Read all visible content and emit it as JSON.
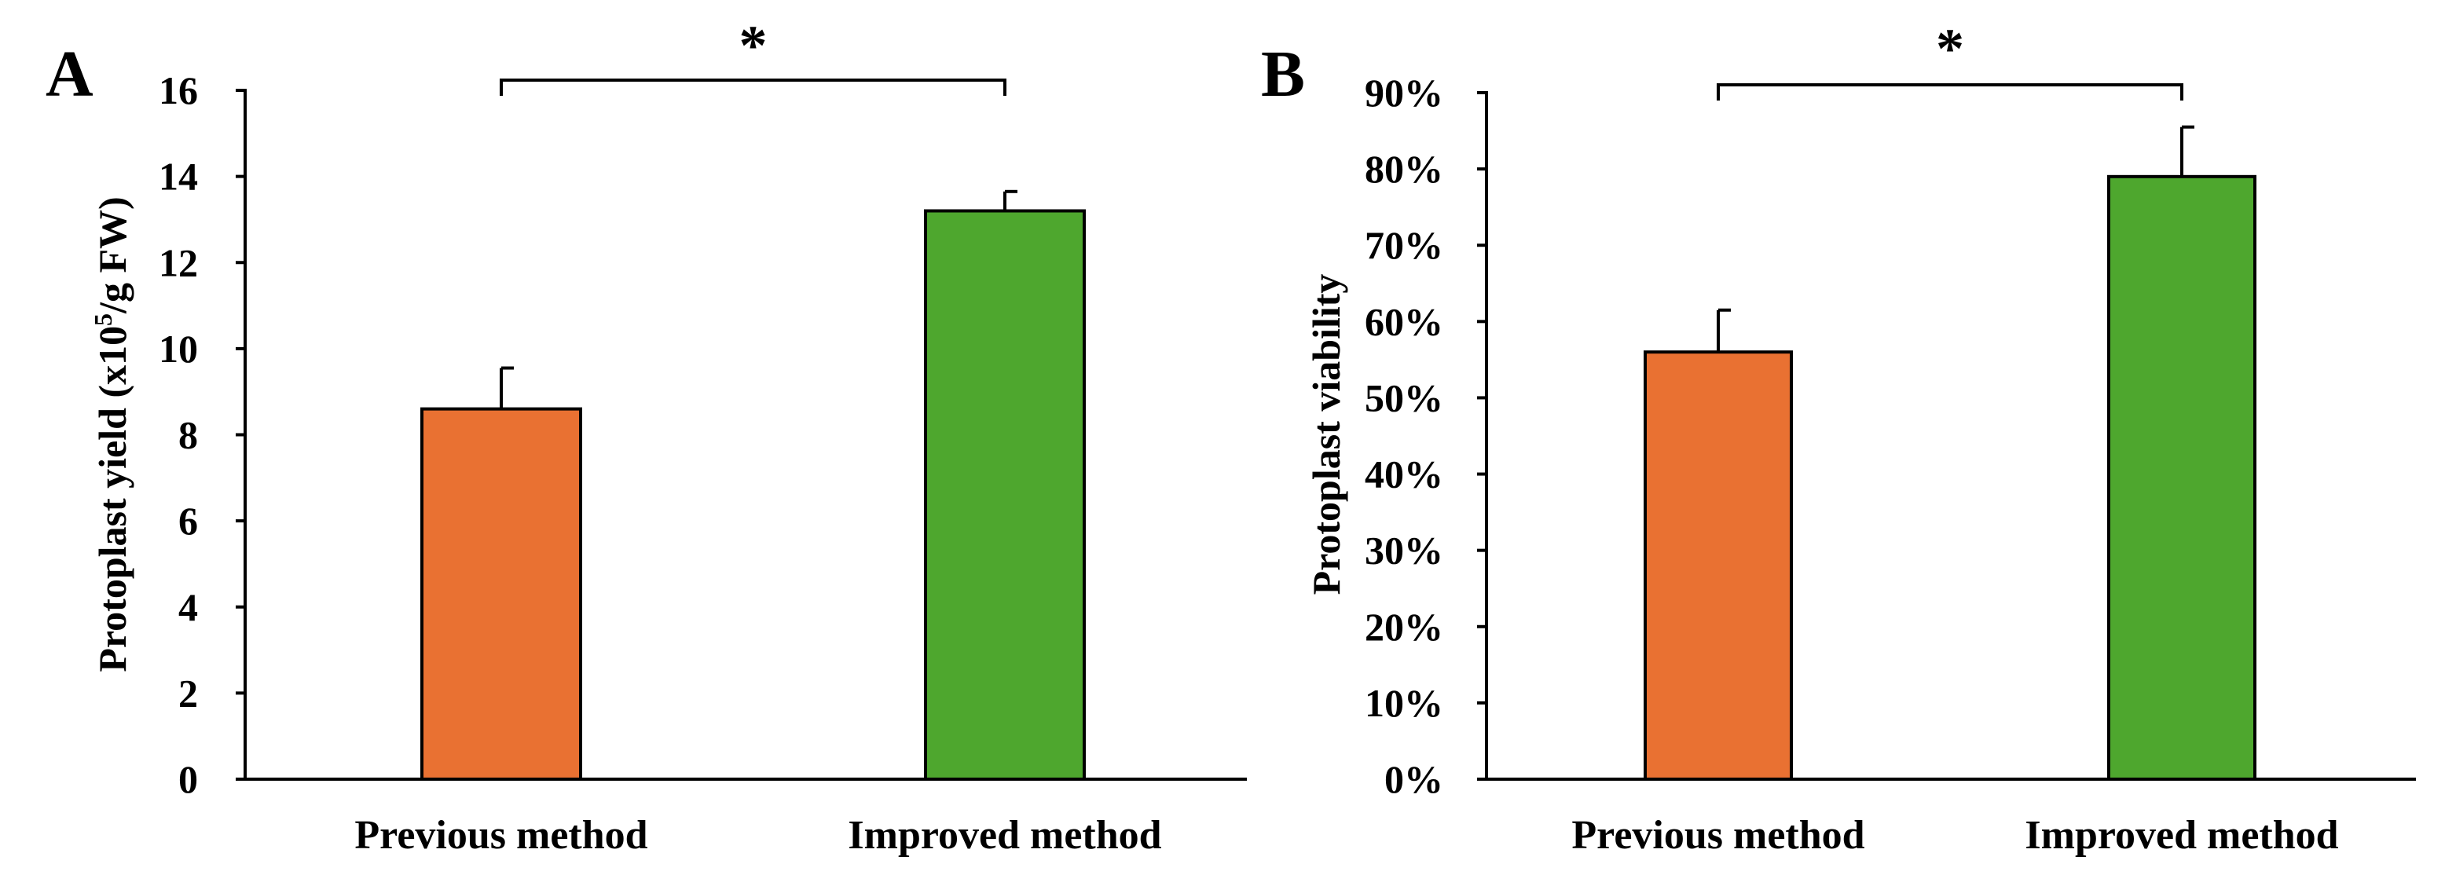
{
  "figure": {
    "panels": [
      "A",
      "B"
    ]
  },
  "chart_data": [
    {
      "type": "bar",
      "panel": "A",
      "categories": [
        "Previous method",
        "Improved method"
      ],
      "values": [
        8.6,
        13.2
      ],
      "errors": [
        0.95,
        0.45
      ],
      "colors": [
        "#E97132",
        "#4EA72E"
      ],
      "ylabel_prefix": "Protoplast  yield (x10",
      "ylabel_sup": "5",
      "ylabel_suffix": "/g FW)",
      "ylim": [
        0,
        16
      ],
      "yticks": [
        0,
        2,
        4,
        6,
        8,
        10,
        12,
        14,
        16
      ],
      "ytick_labels": [
        "0",
        "2",
        "4",
        "6",
        "8",
        "10",
        "12",
        "14",
        "16"
      ],
      "grid": false,
      "significance": "*"
    },
    {
      "type": "bar",
      "panel": "B",
      "categories": [
        "Previous method",
        "Improved method"
      ],
      "values": [
        56,
        79
      ],
      "errors": [
        5.5,
        6.5
      ],
      "colors": [
        "#E97132",
        "#4EA72E"
      ],
      "ylabel": "Protoplast viability",
      "ylim": [
        0,
        90
      ],
      "yticks": [
        0,
        10,
        20,
        30,
        40,
        50,
        60,
        70,
        80,
        90
      ],
      "ytick_labels": [
        "0%",
        "10%",
        "20%",
        "30%",
        "40%",
        "50%",
        "60%",
        "70%",
        "80%",
        "90%"
      ],
      "grid": false,
      "significance": "*"
    }
  ]
}
